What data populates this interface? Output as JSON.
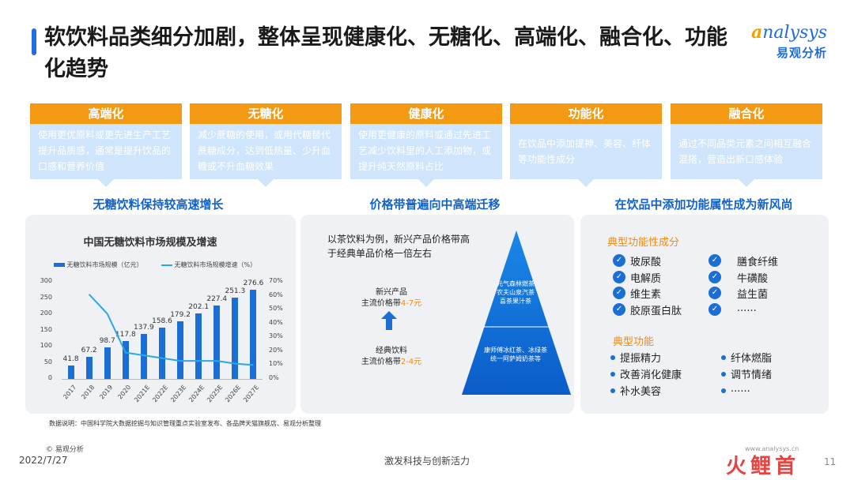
{
  "title": "软饮料品类细分加剧，整体呈现健康化、无糖化、高端化、融合化、功能化趋势",
  "logo": {
    "en_prefix": "a",
    "en_rest": "nalysys",
    "cn": "易观分析"
  },
  "cards": [
    {
      "title": "高端化",
      "body": "使用更优原料或更先进生产工艺提升品质感，通常是提升饮品的口感和营养价值"
    },
    {
      "title": "无糖化",
      "body": "减少蔗糖的使用，或用代糖替代蔗糖成分，达到低热量、少升血糖或不升血糖效果"
    },
    {
      "title": "健康化",
      "body": "使用更健康的原料或通过先进工艺减少饮料里的人工添加物，或提升纯天然原料占比"
    },
    {
      "title": "功能化",
      "body": "在饮品中添加提神、美容、纤体等功能性成分"
    },
    {
      "title": "融合化",
      "body": "通过不同品类元素之间相互融合混搭，营造出新口感体验"
    }
  ],
  "sections": {
    "left": "无糖饮料保持较高速增长",
    "middle": "价格带普遍向中高端迁移",
    "right": "在饮品中添加功能属性成为新风尚"
  },
  "chart_data": {
    "type": "bar",
    "title": "中国无糖饮料市场规模及增速",
    "categories": [
      "2017",
      "2018",
      "2019",
      "2020",
      "2021E",
      "2022E",
      "2023E",
      "2024E",
      "2025E",
      "2026E",
      "2027E"
    ],
    "series": [
      {
        "name": "无糖饮料市场规模（亿元）",
        "type": "bar",
        "values": [
          41.8,
          67.2,
          98.7,
          117.8,
          137.9,
          158.6,
          179.2,
          202.1,
          227.4,
          251.3,
          276.6
        ]
      },
      {
        "name": "无糖饮料市场规模增速（%）",
        "type": "line",
        "values": [
          null,
          61,
          47,
          19,
          17,
          15,
          13,
          13,
          13,
          11,
          10
        ]
      }
    ],
    "y_left": {
      "ticks": [
        "300",
        "250",
        "200",
        "150",
        "100",
        "50",
        "0"
      ],
      "range": [
        0,
        300
      ]
    },
    "y_right": {
      "ticks": [
        "70%",
        "60%",
        "50%",
        "40%",
        "30%",
        "20%",
        "10%",
        "0%"
      ],
      "range": [
        0,
        70
      ]
    },
    "colors": {
      "bar": "#1b6fd4",
      "line": "#2aa7e6"
    }
  },
  "pyramid": {
    "intro": "以茶饮料为例，新兴产品价格带高于经典单品价格一倍左右",
    "new_label": "新兴产品",
    "new_price_prefix": "主流价格带",
    "new_price": "4-7元",
    "classic_label": "经典饮料",
    "classic_price_prefix": "主流价格带",
    "classic_price": "2-4元",
    "top_brands": [
      "元气森林燃茶",
      "农夫山泉汽茶",
      "喜茶果汁茶"
    ],
    "bottom_brands": [
      "康师傅冰红茶、冰绿茶",
      "统一阿萨姆奶茶等"
    ]
  },
  "functional": {
    "ingredients_title": "典型功能性成分",
    "ingredients": [
      "玻尿酸",
      "膳食纤维",
      "电解质",
      "牛磺酸",
      "维生素",
      "益生菌",
      "胶原蛋白肽",
      "......"
    ],
    "functions_title": "典型功能",
    "functions": [
      "提振精力",
      "纤体燃脂",
      "改善消化健康",
      "调节情绪",
      "补水美容",
      "......"
    ]
  },
  "footer": {
    "source": "数据说明：中国科学院大数据挖掘与知识管理重点实验室发布、各品牌天猫旗舰店、易观分析整理",
    "copyright": "© 易观分析",
    "date": "2022/7/27",
    "center": "激发科技与创新活力",
    "website": "www.analysys.cn",
    "brand": "火 鲤 首",
    "page": "11"
  }
}
